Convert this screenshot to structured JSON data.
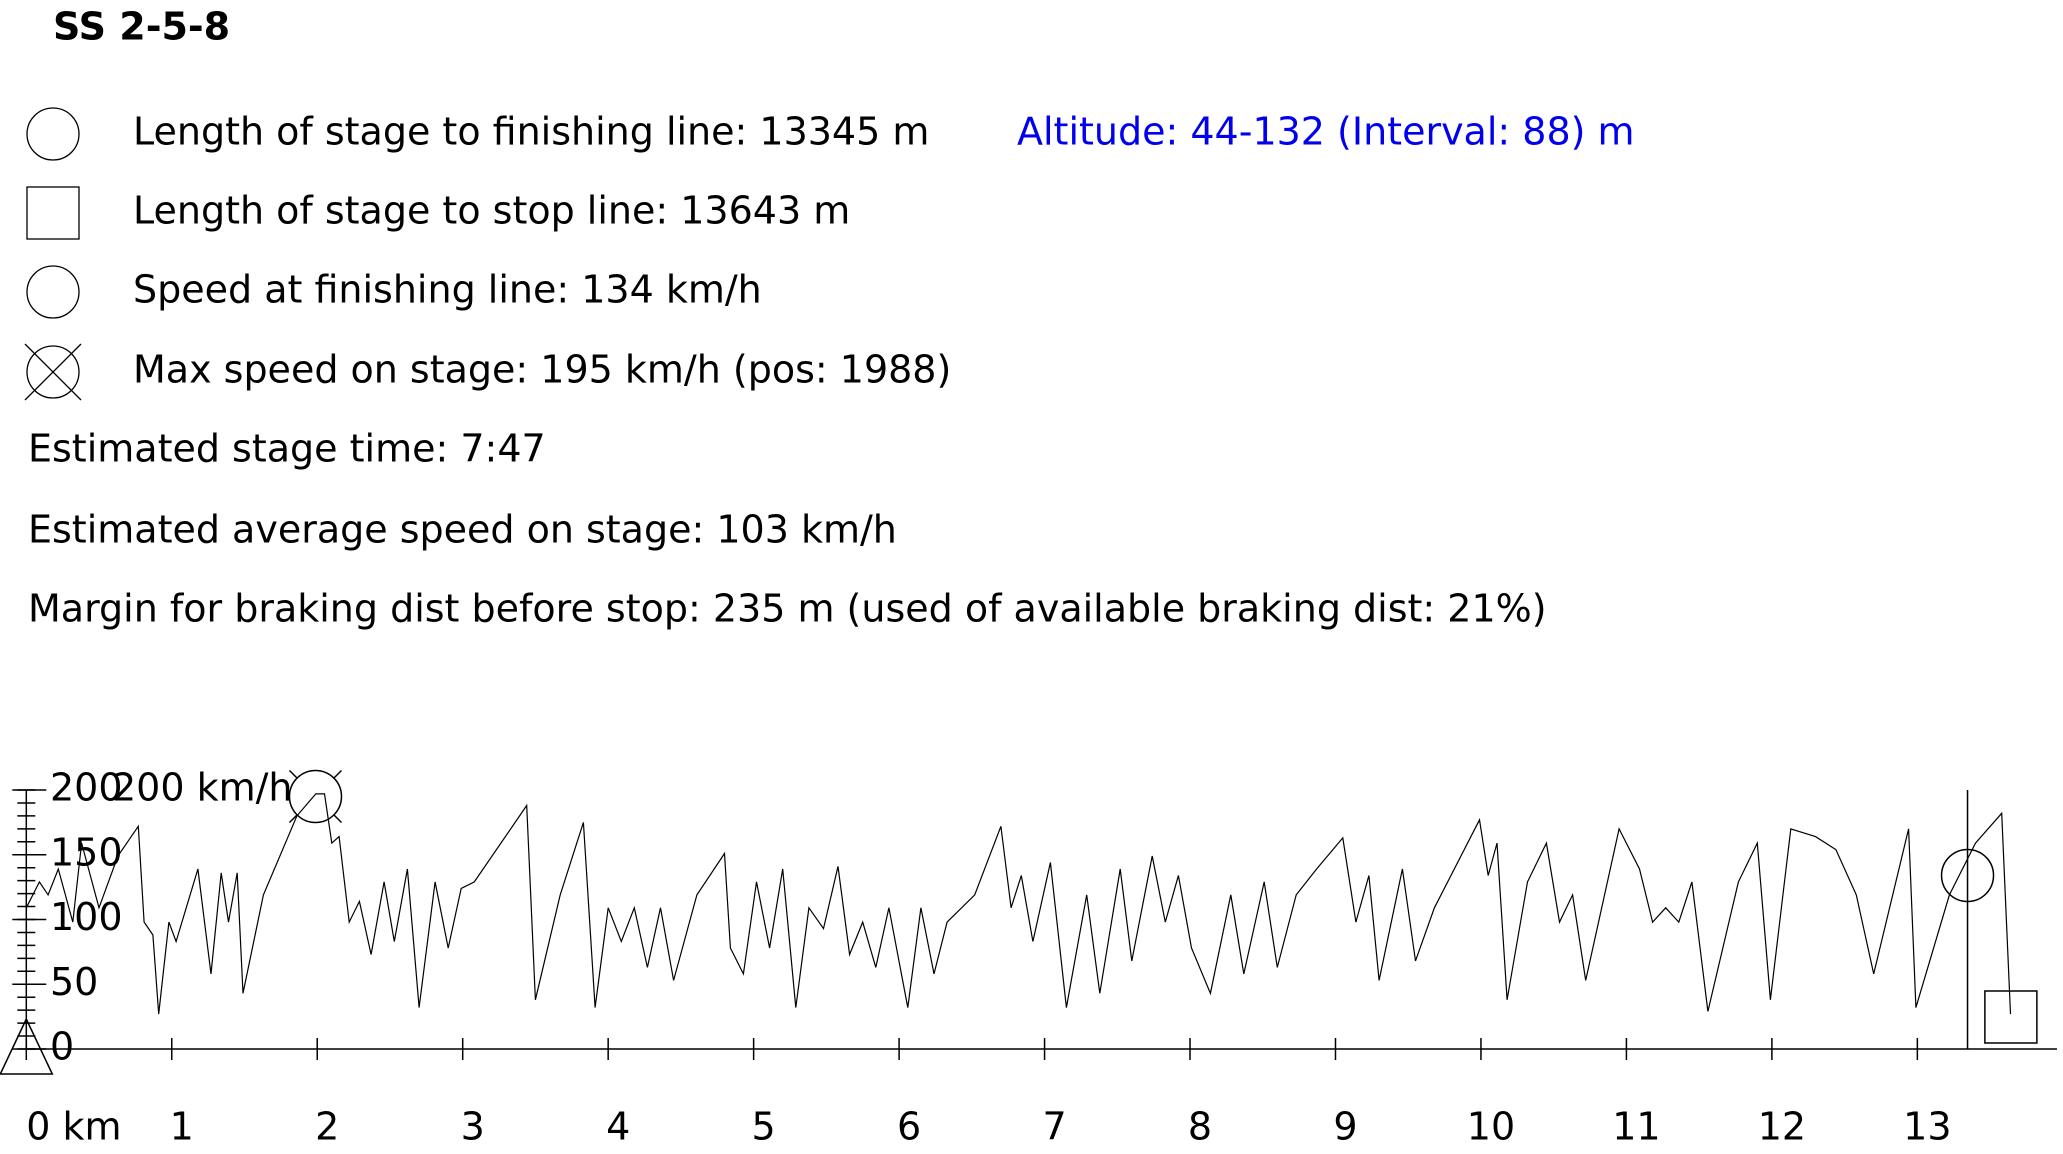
{
  "title": "SS 2-5-8",
  "info": {
    "finish_length": "Length of stage to finishing line: 13345 m",
    "altitude": "Altitude: 44-132 (Interval: 88) m",
    "stop_length": "Length of stage to stop line: 13643 m",
    "finish_speed": "Speed at finishing line: 134 km/h",
    "max_speed": "Max speed on stage: 195 km/h (pos: 1988)",
    "stage_time": "Estimated stage time: 7:47",
    "avg_speed": "Estimated average speed on stage: 103 km/h",
    "braking": "Margin for braking dist before stop: 235 m (used of available braking dist: 21%)"
  },
  "chart_data": {
    "type": "line",
    "y_unit_label": "200 km/h",
    "color": "#000000",
    "xlim": [
      0,
      13.96
    ],
    "ylim": [
      0,
      200
    ],
    "xticks": [
      {
        "value": 0,
        "label": "0 km"
      },
      1,
      2,
      3,
      4,
      5,
      6,
      7,
      8,
      9,
      10,
      11,
      12,
      13
    ],
    "yticks": [
      0,
      50,
      100,
      150,
      200
    ],
    "yminorticks": [
      0,
      10,
      20,
      30,
      40,
      50,
      60,
      70,
      80,
      90,
      100,
      110,
      120,
      130,
      140,
      150,
      160,
      170,
      180,
      190,
      200
    ],
    "finish": {
      "x": 13.345,
      "y": 134
    },
    "max": {
      "x": 1.988,
      "y": 195
    },
    "stop": {
      "x": 13.643
    },
    "x": [
      0,
      0.09,
      0.15,
      0.22,
      0.32,
      0.38,
      0.5,
      0.63,
      0.77,
      0.81,
      0.87,
      0.91,
      0.98,
      1.03,
      1.18,
      1.27,
      1.34,
      1.39,
      1.45,
      1.49,
      1.63,
      1.86,
      1.99,
      2.05,
      2.1,
      2.15,
      2.22,
      2.29,
      2.37,
      2.46,
      2.53,
      2.62,
      2.7,
      2.81,
      2.9,
      2.99,
      3.08,
      3.44,
      3.5,
      3.67,
      3.83,
      3.91,
      4.0,
      4.09,
      4.18,
      4.27,
      4.36,
      4.45,
      4.61,
      4.8,
      4.84,
      4.93,
      5.02,
      5.11,
      5.2,
      5.29,
      5.38,
      5.48,
      5.58,
      5.66,
      5.75,
      5.84,
      5.93,
      6.06,
      6.15,
      6.24,
      6.33,
      6.52,
      6.7,
      6.77,
      6.84,
      6.92,
      7.04,
      7.15,
      7.29,
      7.38,
      7.52,
      7.6,
      7.74,
      7.83,
      7.92,
      8.01,
      8.14,
      8.28,
      8.37,
      8.51,
      8.6,
      8.73,
      8.87,
      9.05,
      9.14,
      9.23,
      9.3,
      9.46,
      9.55,
      9.68,
      9.99,
      10.05,
      10.11,
      10.18,
      10.32,
      10.45,
      10.54,
      10.63,
      10.72,
      10.95,
      11.09,
      11.18,
      11.27,
      11.36,
      11.45,
      11.56,
      11.77,
      11.9,
      11.99,
      12.13,
      12.3,
      12.44,
      12.58,
      12.7,
      12.94,
      12.99,
      13.22,
      13.4,
      13.58,
      13.64
    ],
    "values": [
      109,
      129,
      119,
      139,
      98,
      159,
      109,
      149,
      172,
      98,
      88,
      27,
      98,
      83,
      139,
      58,
      136,
      98,
      136,
      43,
      119,
      180,
      197,
      197,
      159,
      164,
      98,
      114,
      73,
      129,
      83,
      139,
      32,
      129,
      78,
      124,
      129,
      188,
      38,
      119,
      175,
      32,
      109,
      83,
      109,
      63,
      109,
      53,
      119,
      151,
      78,
      58,
      129,
      78,
      139,
      32,
      109,
      93,
      141,
      73,
      98,
      63,
      109,
      32,
      109,
      58,
      98,
      119,
      172,
      109,
      134,
      83,
      144,
      32,
      119,
      43,
      139,
      68,
      149,
      98,
      134,
      78,
      43,
      119,
      58,
      129,
      63,
      119,
      139,
      163,
      98,
      134,
      53,
      139,
      68,
      109,
      177,
      134,
      159,
      38,
      129,
      159,
      98,
      119,
      53,
      170,
      139,
      98,
      109,
      98,
      129,
      29,
      129,
      159,
      38,
      170,
      164,
      154,
      119,
      58,
      170,
      32,
      119,
      159,
      182,
      27
    ]
  }
}
